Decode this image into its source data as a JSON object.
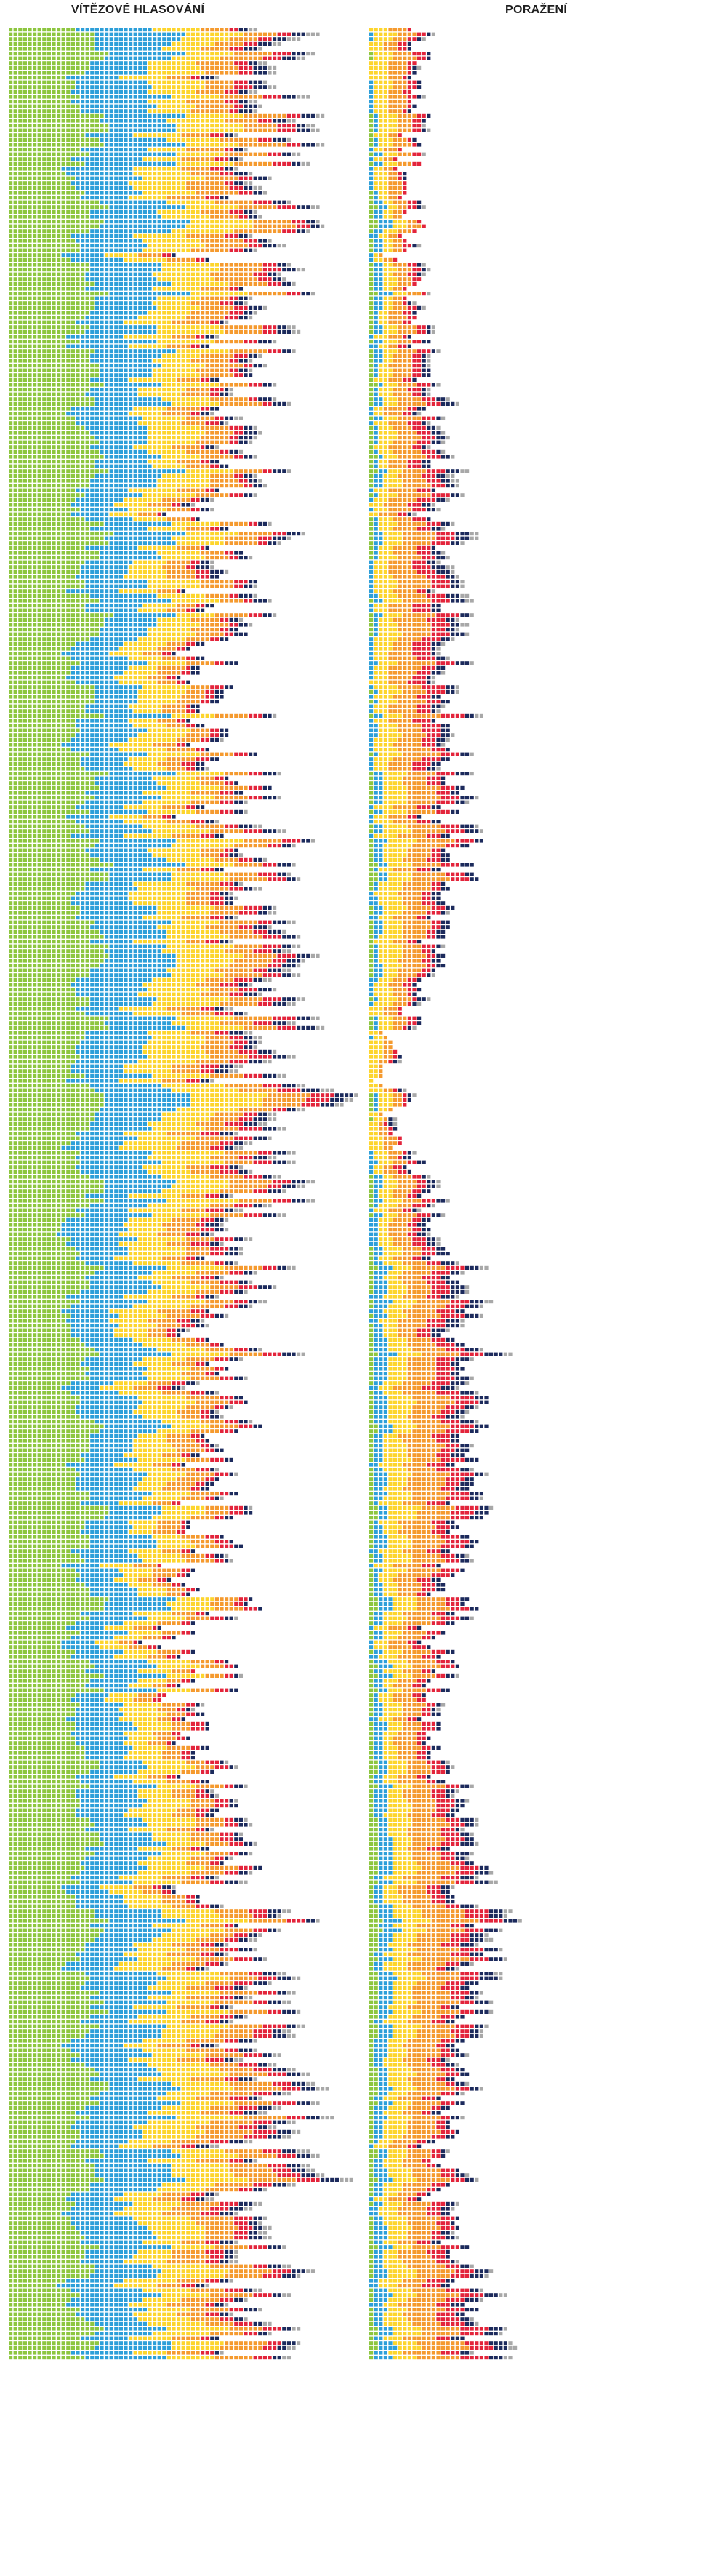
{
  "titles": {
    "winners": "VÍTĚZOVÉ HLASOVÁNÍ",
    "losers": "PORAŽENÍ"
  },
  "colors": {
    "green": "#8dc63f",
    "blue": "#2d9fd9",
    "yellow": "#fdd52c",
    "orange": "#f59a2e",
    "red": "#e3243b",
    "navy": "#1c2a5c",
    "gray": "#a8a8a8"
  },
  "chart_data": {
    "type": "waffle",
    "unit": "one square = one vote",
    "panels": [
      "winners",
      "losers"
    ],
    "categories": [
      "green",
      "blue",
      "yellow",
      "orange",
      "red",
      "navy",
      "gray"
    ],
    "rows": 486,
    "winners_approx_counts_sampled_top_to_bottom": [
      [
        16,
        15,
        10,
        7,
        3,
        3,
        2
      ],
      [
        16,
        14,
        11,
        8,
        3,
        2,
        1
      ],
      [
        17,
        12,
        9,
        6,
        2,
        2,
        1
      ],
      [
        16,
        11,
        8,
        5,
        2,
        2,
        0
      ],
      [
        17,
        13,
        11,
        6,
        3,
        2,
        1
      ],
      [
        16,
        14,
        12,
        7,
        4,
        3,
        2
      ],
      [
        15,
        12,
        10,
        6,
        3,
        2,
        1
      ],
      [
        16,
        11,
        7,
        5,
        2,
        1,
        0
      ],
      [
        15,
        10,
        7,
        4,
        2,
        1,
        0
      ],
      [
        16,
        12,
        10,
        6,
        3,
        2,
        1
      ],
      [
        16,
        14,
        11,
        8,
        4,
        3,
        2
      ],
      [
        15,
        13,
        10,
        7,
        3,
        2,
        1
      ]
    ],
    "losers_approx_counts_sampled_top_to_bottom": [
      [
        0,
        0,
        4,
        4,
        2,
        1,
        0
      ],
      [
        1,
        2,
        2,
        2,
        1,
        0,
        0
      ],
      [
        1,
        1,
        3,
        5,
        3,
        2,
        1
      ],
      [
        0,
        1,
        4,
        6,
        4,
        2,
        1
      ],
      [
        1,
        2,
        5,
        6,
        3,
        2,
        0
      ],
      [
        0,
        0,
        2,
        1,
        0,
        0,
        0
      ],
      [
        1,
        3,
        4,
        6,
        4,
        3,
        1
      ],
      [
        1,
        2,
        5,
        7,
        4,
        2,
        0
      ],
      [
        1,
        2,
        3,
        4,
        2,
        1,
        0
      ],
      [
        2,
        3,
        5,
        8,
        4,
        3,
        1
      ],
      [
        1,
        2,
        4,
        5,
        2,
        1,
        0
      ],
      [
        1,
        3,
        5,
        8,
        5,
        3,
        1
      ]
    ]
  }
}
